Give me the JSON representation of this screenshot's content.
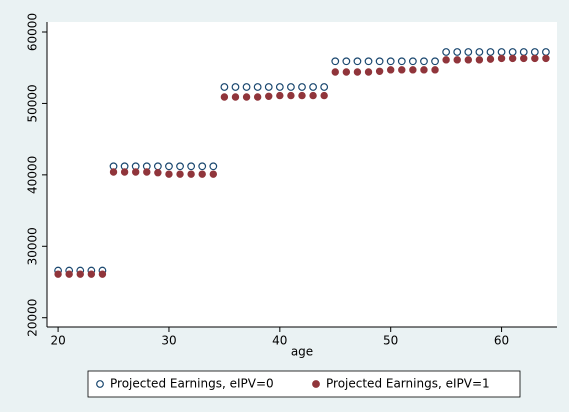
{
  "chart_data": {
    "type": "scatter",
    "xlabel": "age",
    "x": [
      20,
      21,
      22,
      23,
      24,
      25,
      26,
      27,
      28,
      29,
      30,
      31,
      32,
      33,
      34,
      35,
      36,
      37,
      38,
      39,
      40,
      41,
      42,
      43,
      44,
      45,
      46,
      47,
      48,
      49,
      50,
      51,
      52,
      53,
      54,
      55,
      56,
      57,
      58,
      59,
      60,
      61,
      62,
      63,
      64
    ],
    "series": [
      {
        "name": "Projected Earnings, eIPV=0",
        "color": "#1a476f",
        "hollow": true,
        "values": [
          26600,
          26600,
          26600,
          26600,
          26600,
          41200,
          41200,
          41200,
          41200,
          41200,
          41200,
          41200,
          41200,
          41200,
          41200,
          52300,
          52300,
          52300,
          52300,
          52300,
          52300,
          52300,
          52300,
          52300,
          52300,
          55900,
          55900,
          55900,
          55900,
          55900,
          55900,
          55900,
          55900,
          55900,
          55900,
          57200,
          57200,
          57200,
          57200,
          57200,
          57200,
          57200,
          57200,
          57200,
          57200
        ]
      },
      {
        "name": "Projected Earnings, eIPV=1",
        "color": "#90353b",
        "hollow": false,
        "values": [
          26100,
          26100,
          26100,
          26100,
          26100,
          40400,
          40400,
          40400,
          40400,
          40300,
          40100,
          40100,
          40100,
          40100,
          40100,
          50900,
          50900,
          50900,
          50900,
          51000,
          51100,
          51100,
          51100,
          51100,
          51100,
          54400,
          54400,
          54400,
          54400,
          54500,
          54700,
          54700,
          54700,
          54700,
          54700,
          56100,
          56100,
          56100,
          56100,
          56200,
          56300,
          56300,
          56300,
          56300,
          56300
        ]
      }
    ],
    "xlim": [
      19,
      65
    ],
    "xticks": [
      20,
      30,
      40,
      50,
      60
    ],
    "ylim": [
      18700,
      61400
    ],
    "yticks": [
      20000,
      30000,
      40000,
      50000,
      60000
    ],
    "legend": "bottom"
  }
}
